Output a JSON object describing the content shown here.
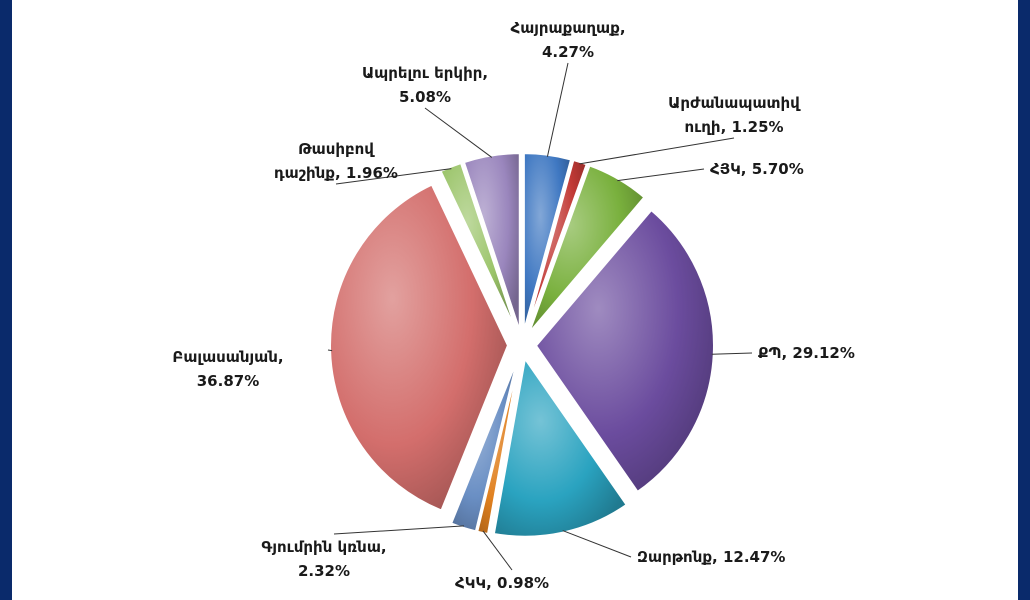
{
  "chart_data": {
    "type": "pie",
    "title": "",
    "exploded": true,
    "start_angle_deg": 0,
    "direction": "clockwise",
    "slices": [
      {
        "name": "Հայրաքաղաք",
        "value": 4.27,
        "color": "#3f78c2",
        "label_lines": [
          "Հայրաքաղաք,",
          "4.27%"
        ]
      },
      {
        "name": "Արժանապատիվ ուղի",
        "value": 1.25,
        "color": "#c23a36",
        "label_lines": [
          "Արժանապատիվ",
          "ուղի, 1.25%"
        ]
      },
      {
        "name": "ՀՅԿ",
        "value": 5.7,
        "color": "#79b03d",
        "label_lines": [
          "ՀՅԿ, 5.70%"
        ]
      },
      {
        "name": "ՔՊ",
        "value": 29.12,
        "color": "#6b4c9e",
        "label_lines": [
          "ՔՊ, 29.12%"
        ]
      },
      {
        "name": "Զարթոնք",
        "value": 12.47,
        "color": "#2aa3c0",
        "label_lines": [
          "Զարթոնք, 12.47%"
        ]
      },
      {
        "name": "ՀԿԿ",
        "value": 0.98,
        "color": "#e0801f",
        "label_lines": [
          "ՀԿԿ, 0.98%"
        ]
      },
      {
        "name": "Գյումրին կռնա",
        "value": 2.32,
        "color": "#6a8fc4",
        "label_lines": [
          "Գյումրին կռնա,",
          "2.32%"
        ]
      },
      {
        "name": "Բալասանյան",
        "value": 36.87,
        "color": "#d36e6c",
        "label_lines": [
          "Բալասանյան,",
          "36.87%"
        ]
      },
      {
        "name": "Թասիբով դաշինք",
        "value": 1.96,
        "color": "#9bc46a",
        "label_lines": [
          "Թասիբով",
          "դաշինք, 1.96%"
        ]
      },
      {
        "name": "Ապրելու երկիր",
        "value": 5.08,
        "color": "#9a86bd",
        "label_lines": [
          "Ապրելու երկիր,",
          "5.08%"
        ]
      }
    ]
  }
}
